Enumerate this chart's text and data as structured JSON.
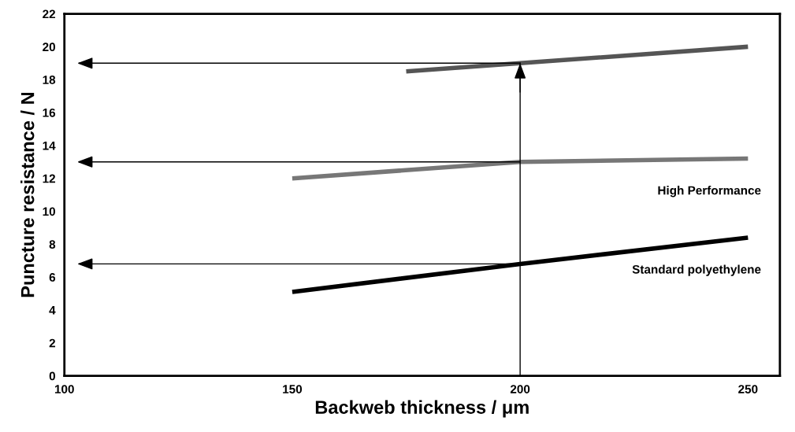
{
  "chart_data": {
    "type": "line",
    "xlabel": "Backweb thickness / μm",
    "ylabel": "Puncture resistance / N",
    "series": [
      {
        "color": "#555555",
        "x": [
          175,
          200,
          250
        ],
        "values": [
          18.5,
          19,
          20
        ]
      },
      {
        "name": "High Performance",
        "color": "#777777",
        "x": [
          150,
          200,
          250
        ],
        "values": [
          12,
          13,
          13.2
        ]
      },
      {
        "name": "Standard polyethylene",
        "color": "#000000",
        "x": [
          150,
          200,
          250
        ],
        "values": [
          5.1,
          6.8,
          8.4
        ]
      }
    ],
    "ref_lines": [
      {
        "axis": "x",
        "value": 200
      }
    ],
    "xlim": [
      100,
      257
    ],
    "xticks": [
      100,
      150,
      200,
      250
    ],
    "ylim": [
      0,
      22
    ],
    "yticks": [
      0,
      2,
      4,
      6,
      8,
      10,
      12,
      14,
      16,
      18,
      20,
      22
    ],
    "grid": false,
    "legend": false,
    "marker": "none",
    "line_style": "solid"
  }
}
